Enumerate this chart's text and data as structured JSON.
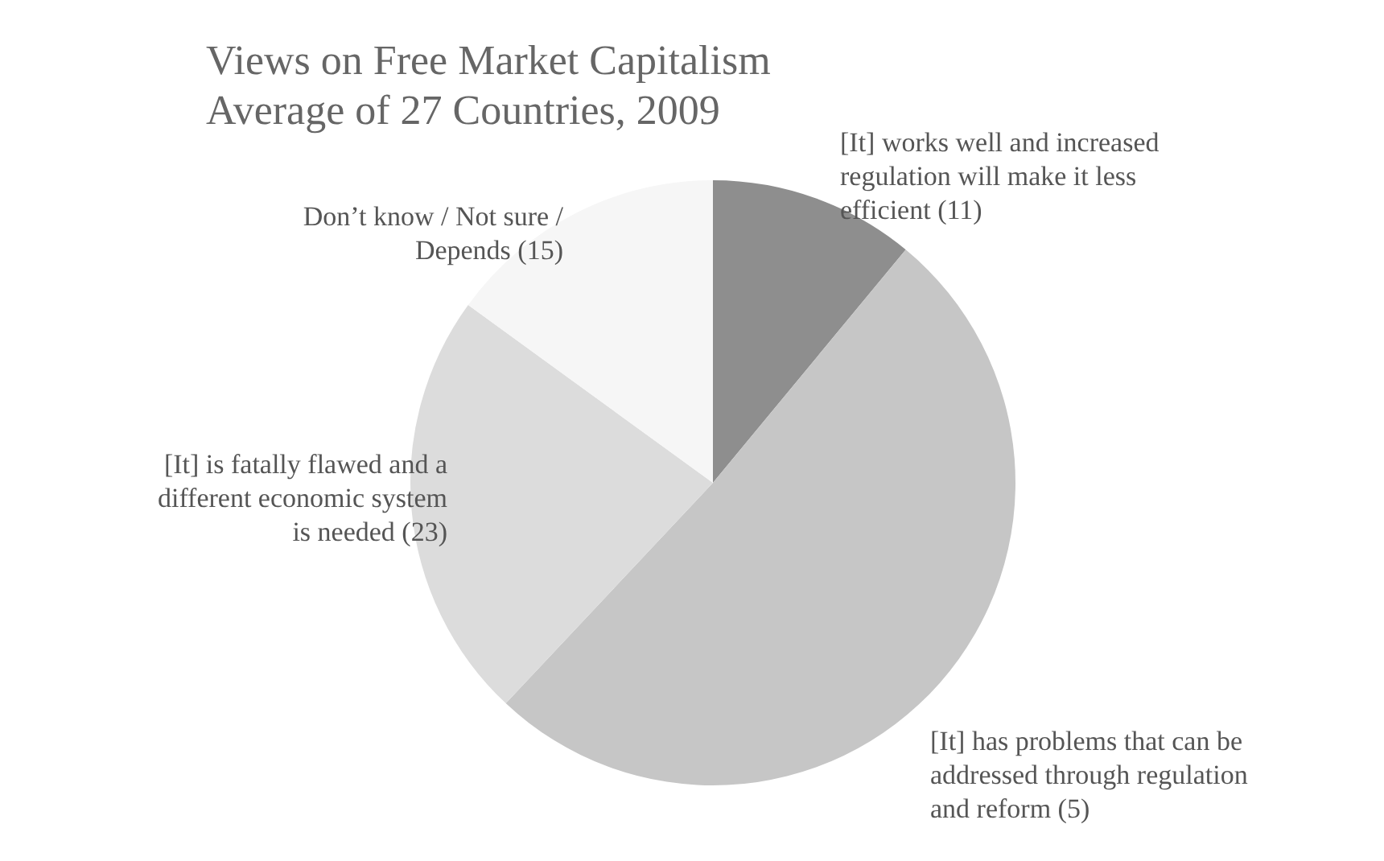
{
  "chart_data": {
    "type": "pie",
    "title": "Views on Free Market Capitalism",
    "subtitle": "Average of 27 Countries, 2009",
    "categories": [
      "[It] works well and increased regulation will make it less efficient (11)",
      "[It] has problems that can be addressed through regulation and reform (5)",
      "[It] is fatally flawed and a different economic system is needed (23)",
      "Don’t know / Not sure / Depends (15)"
    ],
    "values": [
      11,
      51,
      23,
      15
    ],
    "colors": [
      "#8e8e8e",
      "#c6c6c6",
      "#dcdcdc",
      "#f6f6f6"
    ],
    "legend": false
  }
}
